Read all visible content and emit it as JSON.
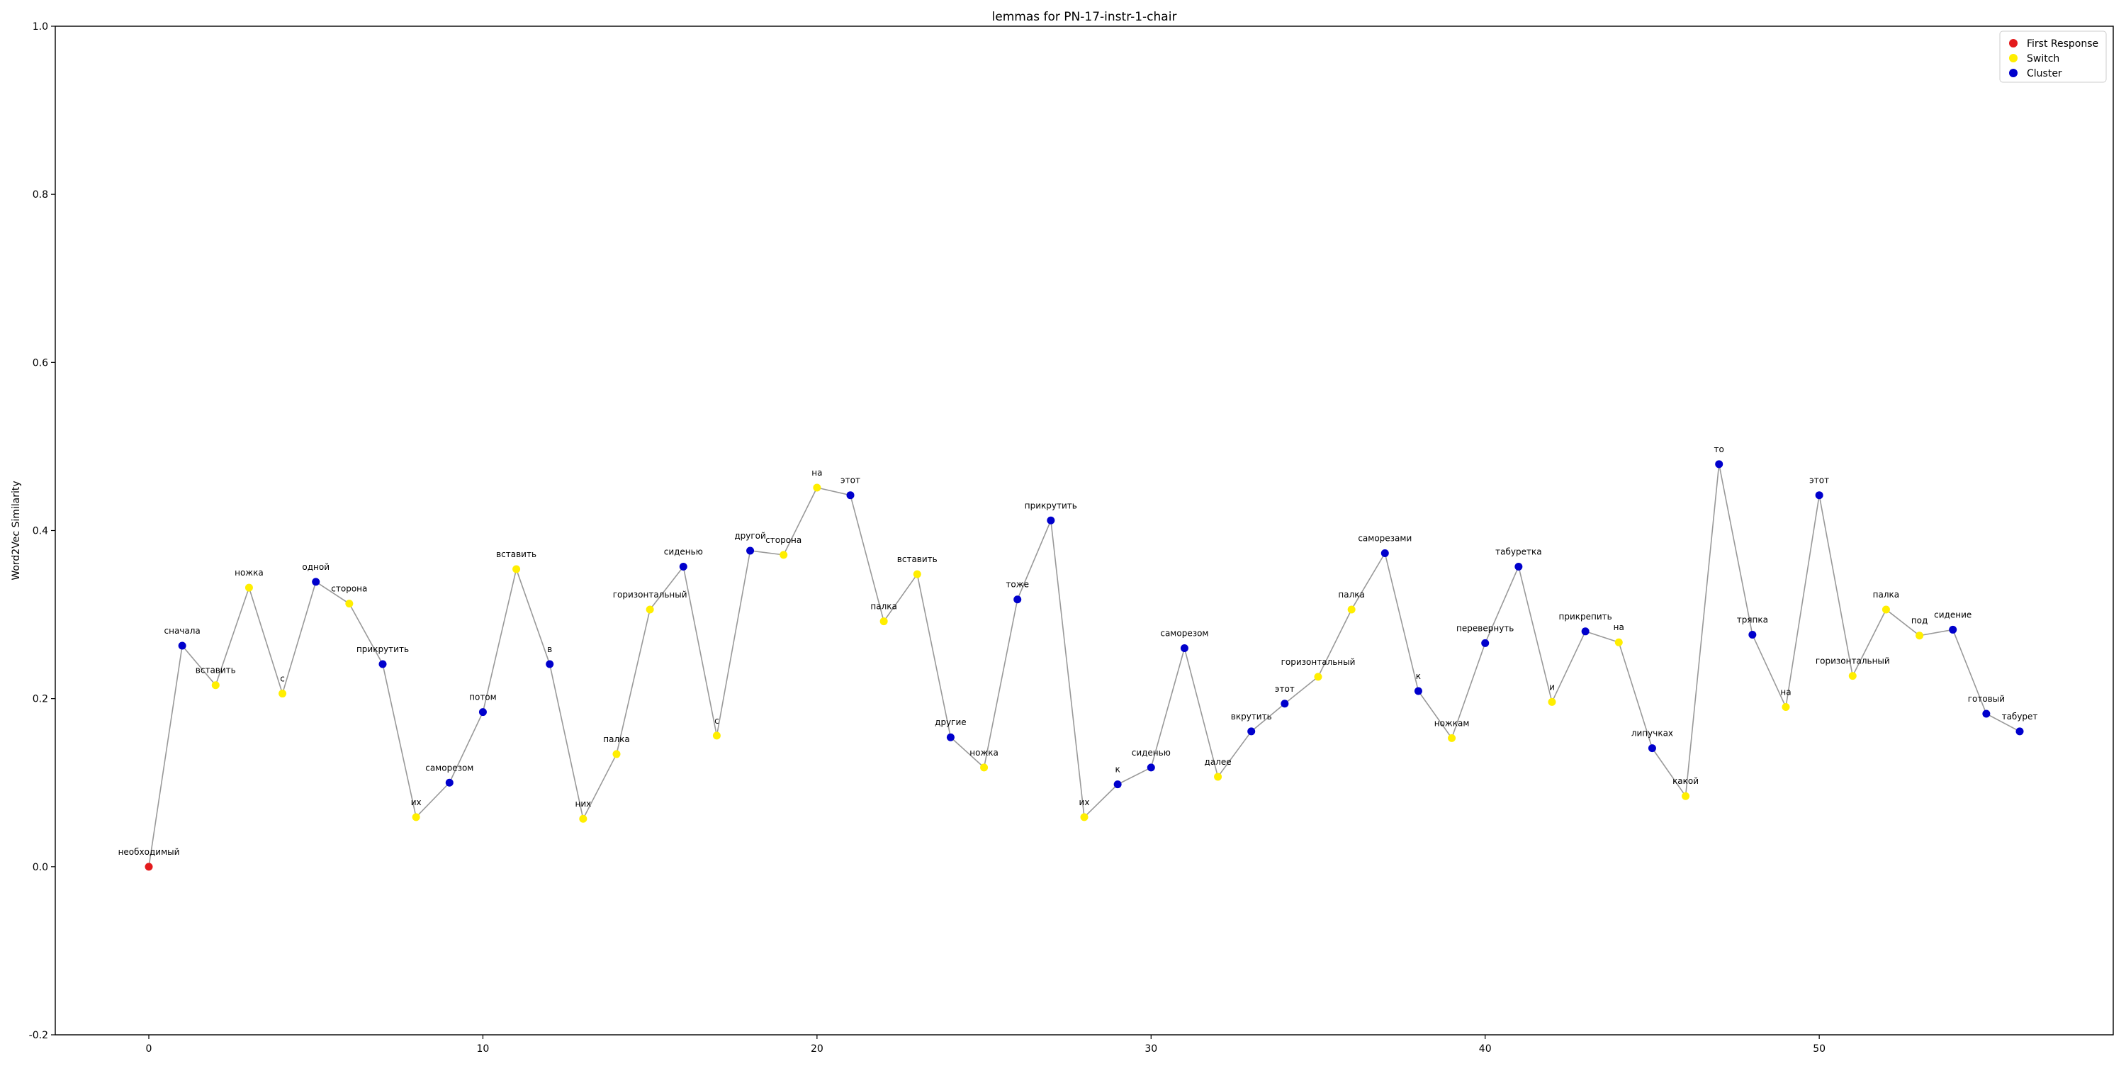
{
  "chart_data": {
    "type": "scatter",
    "title": "lemmas for PN-17-instr-1-chair",
    "xlabel": "",
    "ylabel": "Word2Vec Similarity",
    "xlim": [
      -2.8,
      58.8
    ],
    "ylim": [
      -0.2,
      1.0
    ],
    "xticks": [
      0,
      10,
      20,
      30,
      40,
      50
    ],
    "yticks": [
      -0.2,
      0.0,
      0.2,
      0.4,
      0.6,
      0.8,
      1.0
    ],
    "grid": false,
    "legend_position": "top-right",
    "line_color": "#999999",
    "categories": {
      "first": {
        "label": "First Response",
        "color": "#e31a1c"
      },
      "switch": {
        "label": "Switch",
        "color": "#ffee00"
      },
      "cluster": {
        "label": "Cluster",
        "color": "#0000cc"
      }
    },
    "legend": [
      {
        "key": "first",
        "label": "First Response"
      },
      {
        "key": "switch",
        "label": "Switch"
      },
      {
        "key": "cluster",
        "label": "Cluster"
      }
    ],
    "points": [
      {
        "x": 0,
        "y": 0.0,
        "label": "необходимый",
        "type": "first"
      },
      {
        "x": 1,
        "y": 0.263,
        "label": "сначала",
        "type": "cluster"
      },
      {
        "x": 2,
        "y": 0.216,
        "label": "вставить",
        "type": "switch"
      },
      {
        "x": 3,
        "y": 0.332,
        "label": "ножка",
        "type": "switch"
      },
      {
        "x": 4,
        "y": 0.206,
        "label": "с",
        "type": "switch"
      },
      {
        "x": 5,
        "y": 0.339,
        "label": "одной",
        "type": "cluster"
      },
      {
        "x": 6,
        "y": 0.313,
        "label": "сторона",
        "type": "switch"
      },
      {
        "x": 7,
        "y": 0.241,
        "label": "прикрутить",
        "type": "cluster"
      },
      {
        "x": 8,
        "y": 0.059,
        "label": "их",
        "type": "switch"
      },
      {
        "x": 9,
        "y": 0.1,
        "label": "саморезом",
        "type": "cluster"
      },
      {
        "x": 10,
        "y": 0.184,
        "label": "потом",
        "type": "cluster"
      },
      {
        "x": 11,
        "y": 0.354,
        "label": "вставить",
        "type": "switch"
      },
      {
        "x": 12,
        "y": 0.241,
        "label": "в",
        "type": "cluster"
      },
      {
        "x": 13,
        "y": 0.057,
        "label": "них",
        "type": "switch"
      },
      {
        "x": 14,
        "y": 0.134,
        "label": "палка",
        "type": "switch"
      },
      {
        "x": 15,
        "y": 0.306,
        "label": "горизонтальный",
        "type": "switch"
      },
      {
        "x": 16,
        "y": 0.357,
        "label": "сиденью",
        "type": "cluster"
      },
      {
        "x": 17,
        "y": 0.156,
        "label": "с",
        "type": "switch"
      },
      {
        "x": 18,
        "y": 0.376,
        "label": "другой",
        "type": "cluster"
      },
      {
        "x": 19,
        "y": 0.371,
        "label": "сторона",
        "type": "switch"
      },
      {
        "x": 20,
        "y": 0.451,
        "label": "на",
        "type": "switch"
      },
      {
        "x": 21,
        "y": 0.442,
        "label": "этот",
        "type": "cluster"
      },
      {
        "x": 22,
        "y": 0.292,
        "label": "палка",
        "type": "switch"
      },
      {
        "x": 23,
        "y": 0.348,
        "label": "вставить",
        "type": "switch"
      },
      {
        "x": 24,
        "y": 0.154,
        "label": "другие",
        "type": "cluster"
      },
      {
        "x": 25,
        "y": 0.118,
        "label": "ножка",
        "type": "switch"
      },
      {
        "x": 26,
        "y": 0.318,
        "label": "тоже",
        "type": "cluster"
      },
      {
        "x": 27,
        "y": 0.412,
        "label": "прикрутить",
        "type": "cluster"
      },
      {
        "x": 28,
        "y": 0.059,
        "label": "их",
        "type": "switch"
      },
      {
        "x": 29,
        "y": 0.098,
        "label": "к",
        "type": "cluster"
      },
      {
        "x": 30,
        "y": 0.118,
        "label": "сиденью",
        "type": "cluster"
      },
      {
        "x": 31,
        "y": 0.26,
        "label": "саморезом",
        "type": "cluster"
      },
      {
        "x": 32,
        "y": 0.107,
        "label": "далее",
        "type": "switch"
      },
      {
        "x": 33,
        "y": 0.161,
        "label": "вкрутить",
        "type": "cluster"
      },
      {
        "x": 34,
        "y": 0.194,
        "label": "этот",
        "type": "cluster"
      },
      {
        "x": 35,
        "y": 0.226,
        "label": "горизонтальный",
        "type": "switch"
      },
      {
        "x": 36,
        "y": 0.306,
        "label": "палка",
        "type": "switch"
      },
      {
        "x": 37,
        "y": 0.373,
        "label": "саморезами",
        "type": "cluster"
      },
      {
        "x": 38,
        "y": 0.209,
        "label": "к",
        "type": "cluster"
      },
      {
        "x": 39,
        "y": 0.153,
        "label": "ножкам",
        "type": "switch"
      },
      {
        "x": 40,
        "y": 0.266,
        "label": "перевернуть",
        "type": "cluster"
      },
      {
        "x": 41,
        "y": 0.357,
        "label": "табуретка",
        "type": "cluster"
      },
      {
        "x": 42,
        "y": 0.196,
        "label": "и",
        "type": "switch"
      },
      {
        "x": 43,
        "y": 0.28,
        "label": "прикрепить",
        "type": "cluster"
      },
      {
        "x": 44,
        "y": 0.267,
        "label": "на",
        "type": "switch"
      },
      {
        "x": 45,
        "y": 0.141,
        "label": "липучках",
        "type": "cluster"
      },
      {
        "x": 46,
        "y": 0.084,
        "label": "какой",
        "type": "switch"
      },
      {
        "x": 47,
        "y": 0.479,
        "label": "то",
        "type": "cluster"
      },
      {
        "x": 48,
        "y": 0.276,
        "label": "тряпка",
        "type": "cluster"
      },
      {
        "x": 49,
        "y": 0.19,
        "label": "на",
        "type": "switch"
      },
      {
        "x": 50,
        "y": 0.442,
        "label": "этот",
        "type": "cluster"
      },
      {
        "x": 51,
        "y": 0.227,
        "label": "горизонтальный",
        "type": "switch"
      },
      {
        "x": 52,
        "y": 0.306,
        "label": "палка",
        "type": "switch"
      },
      {
        "x": 53,
        "y": 0.275,
        "label": "под",
        "type": "switch"
      },
      {
        "x": 54,
        "y": 0.282,
        "label": "сидение",
        "type": "cluster"
      },
      {
        "x": 55,
        "y": 0.182,
        "label": "готовый",
        "type": "cluster"
      },
      {
        "x": 56,
        "y": 0.161,
        "label": "табурет",
        "type": "cluster"
      }
    ]
  }
}
